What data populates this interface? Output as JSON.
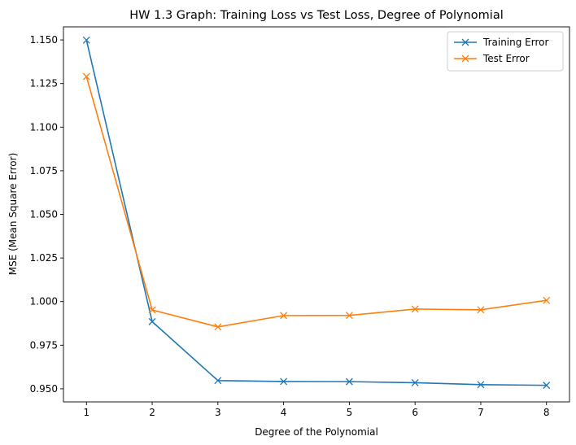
{
  "chart_data": {
    "type": "line",
    "title": "HW 1.3 Graph: Training Loss vs Test Loss, Degree of Polynomial",
    "xlabel": "Degree of the Polynomial",
    "ylabel": "MSE (Mean Square Error)",
    "x": [
      1,
      2,
      3,
      4,
      5,
      6,
      7,
      8
    ],
    "xticks": [
      "1",
      "2",
      "3",
      "4",
      "5",
      "6",
      "7",
      "8"
    ],
    "yticks": [
      "0.950",
      "0.975",
      "1.000",
      "1.025",
      "1.050",
      "1.075",
      "1.100",
      "1.125",
      "1.150"
    ],
    "xlim": [
      0.65,
      8.35
    ],
    "ylim": [
      0.9425,
      1.1575
    ],
    "grid": false,
    "legend_position": "upper right",
    "marker": "x",
    "series": [
      {
        "name": "Training Error",
        "color": "#1f77b4",
        "values": [
          1.1499,
          0.9885,
          0.9547,
          0.9542,
          0.9541,
          0.9535,
          0.9524,
          0.952
        ]
      },
      {
        "name": "Test Error",
        "color": "#ff7f0e",
        "values": [
          1.129,
          0.9952,
          0.9855,
          0.992,
          0.9921,
          0.9957,
          0.9953,
          1.0007
        ]
      }
    ]
  }
}
